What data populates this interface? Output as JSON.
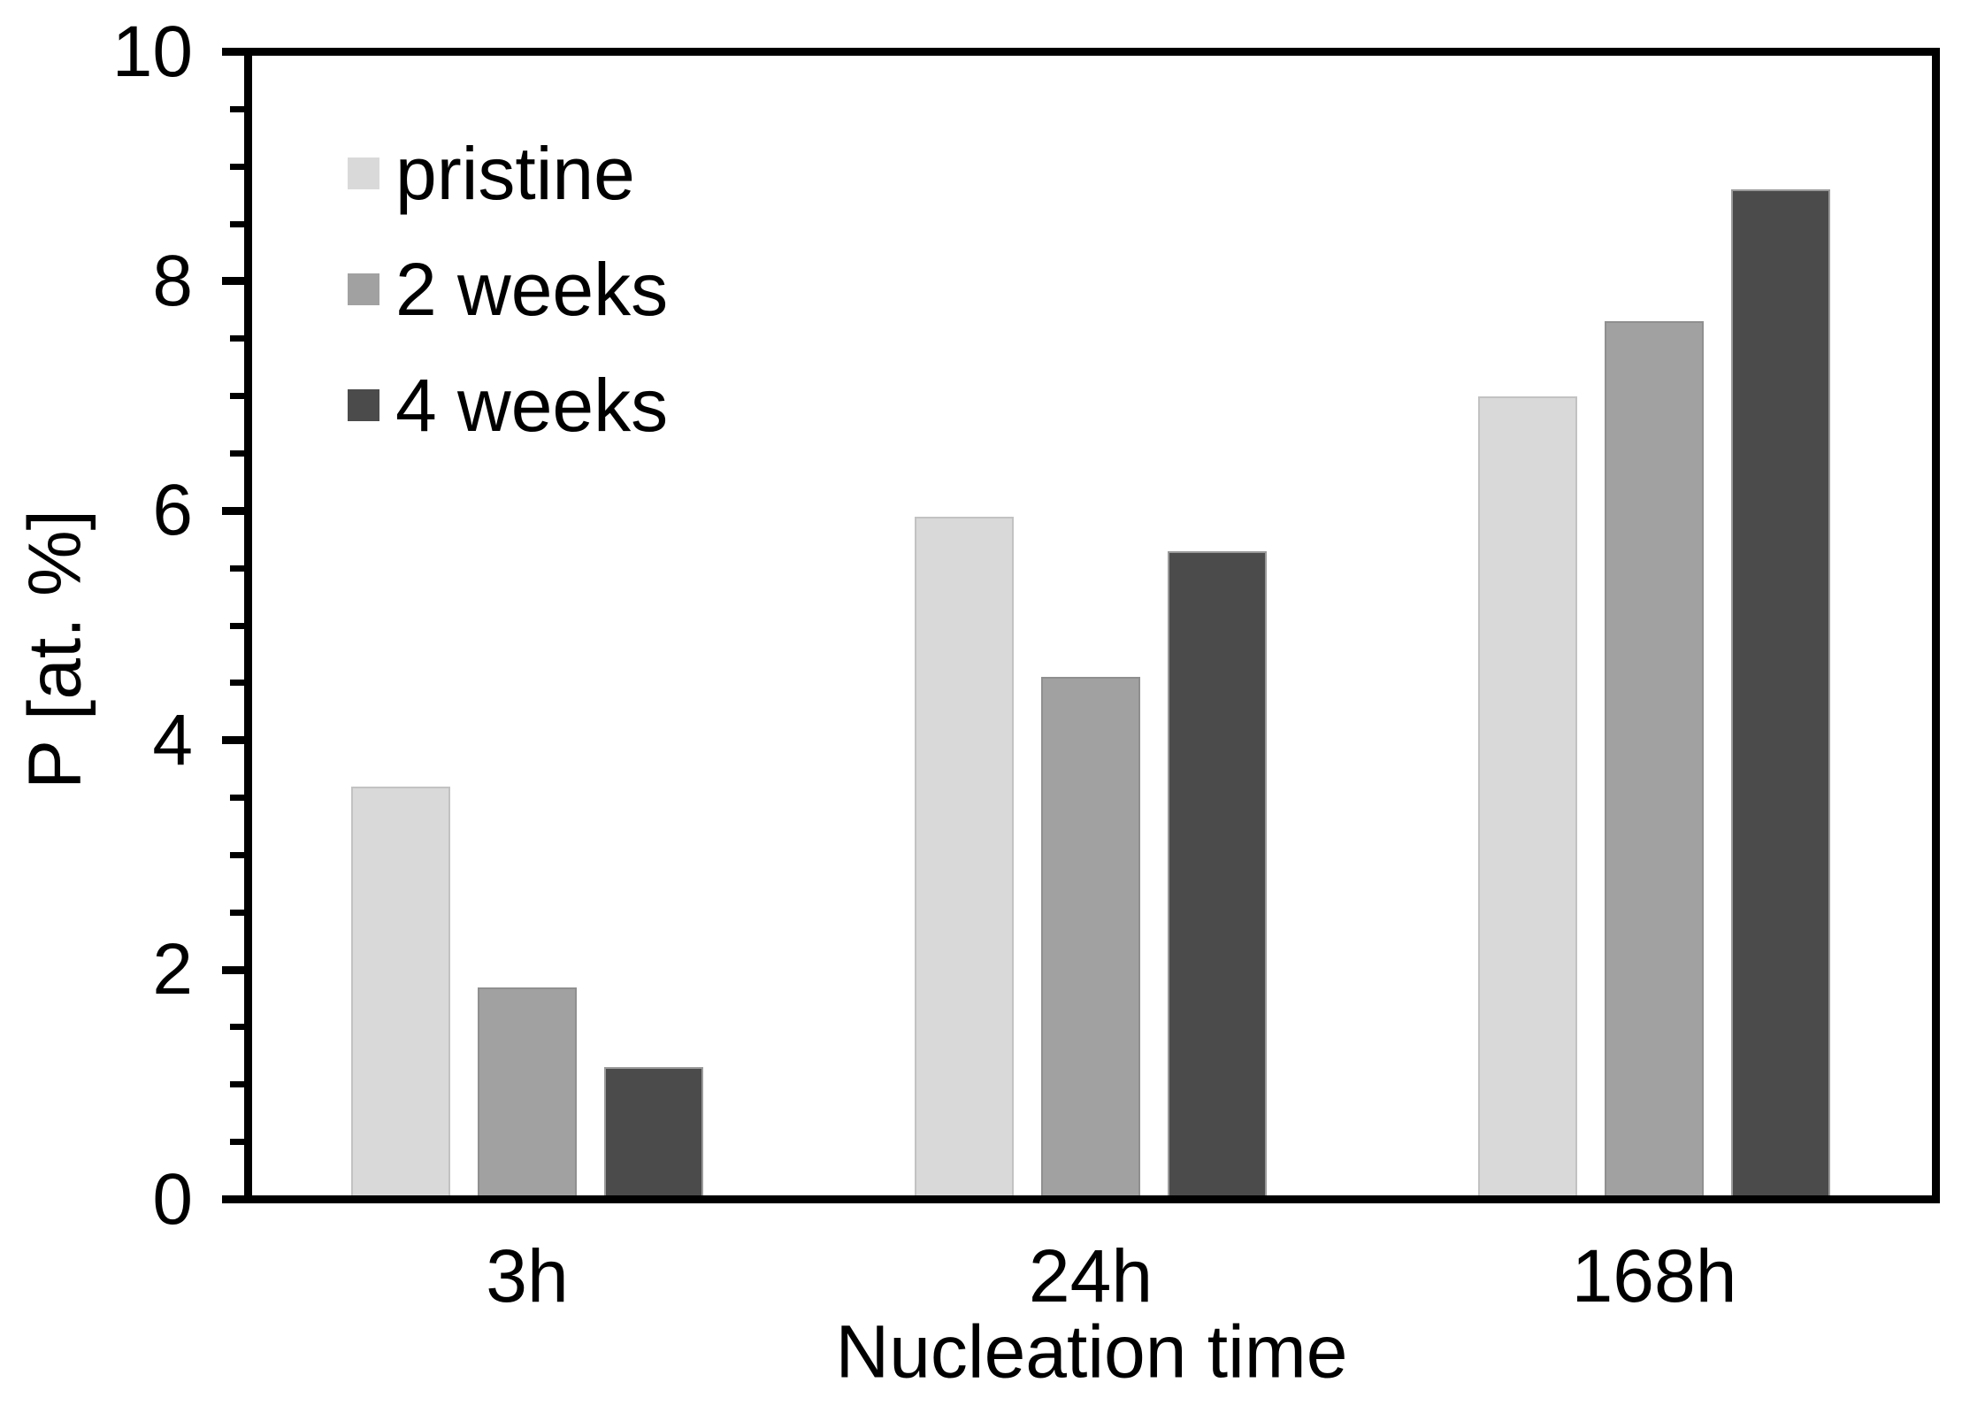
{
  "chart_data": {
    "type": "bar",
    "title": "",
    "xlabel": "Nucleation time",
    "ylabel": "P [at. %]",
    "categories": [
      "3h",
      "24h",
      "168h"
    ],
    "series": [
      {
        "name": "pristine",
        "color": "#d9d9d9",
        "border": "#c2c2c2",
        "values": [
          3.6,
          5.95,
          7.0
        ]
      },
      {
        "name": "2 weeks",
        "color": "#a1a1a1",
        "border": "#8f8f8f",
        "values": [
          1.85,
          4.55,
          7.65
        ]
      },
      {
        "name": "4 weeks",
        "color": "#4b4b4b",
        "border": "#9a9a9a",
        "values": [
          1.15,
          5.65,
          8.8
        ]
      }
    ],
    "ylim": [
      0,
      10
    ],
    "y_major_ticks": [
      0,
      2,
      4,
      6,
      8,
      10
    ],
    "y_minor_step": 0.5,
    "grid": false,
    "frame": "full-box",
    "axis_color": "#000000",
    "legend_position": "upper-left-inside"
  }
}
